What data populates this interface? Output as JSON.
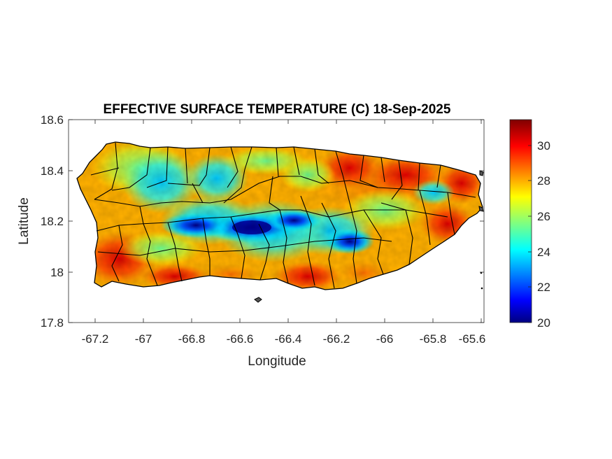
{
  "title": "EFFECTIVE SURFACE TEMPERATURE (C) 18-Sep-2025",
  "xlabel": "Longitude",
  "ylabel": "Latitude",
  "x_ticks": [
    "-67.2",
    "-67",
    "-66.8",
    "-66.6",
    "-66.4",
    "-66.2",
    "-66",
    "-65.8",
    "-65.6"
  ],
  "y_ticks": [
    "18.6",
    "18.4",
    "18.2",
    "18",
    "17.8"
  ],
  "colorbar": {
    "ticks": [
      "30",
      "28",
      "26",
      "24",
      "22",
      "20"
    ],
    "colormap": "jet",
    "colors": [
      "#000080",
      "#0000ff",
      "#00a0ff",
      "#00ffff",
      "#80ff80",
      "#ffff00",
      "#ff8000",
      "#ff0000",
      "#800000"
    ]
  },
  "chart_data": {
    "type": "heatmap",
    "title": "EFFECTIVE SURFACE TEMPERATURE (C) 18-Sep-2025",
    "xlabel": "Longitude",
    "ylabel": "Latitude",
    "xlim": [
      -67.3,
      -65.58
    ],
    "ylim": [
      17.8,
      18.6
    ],
    "color_range": [
      20,
      31.5
    ],
    "region": "Puerto Rico",
    "municipality_boundaries": true,
    "grid": false,
    "colorbar_position": "right"
  }
}
